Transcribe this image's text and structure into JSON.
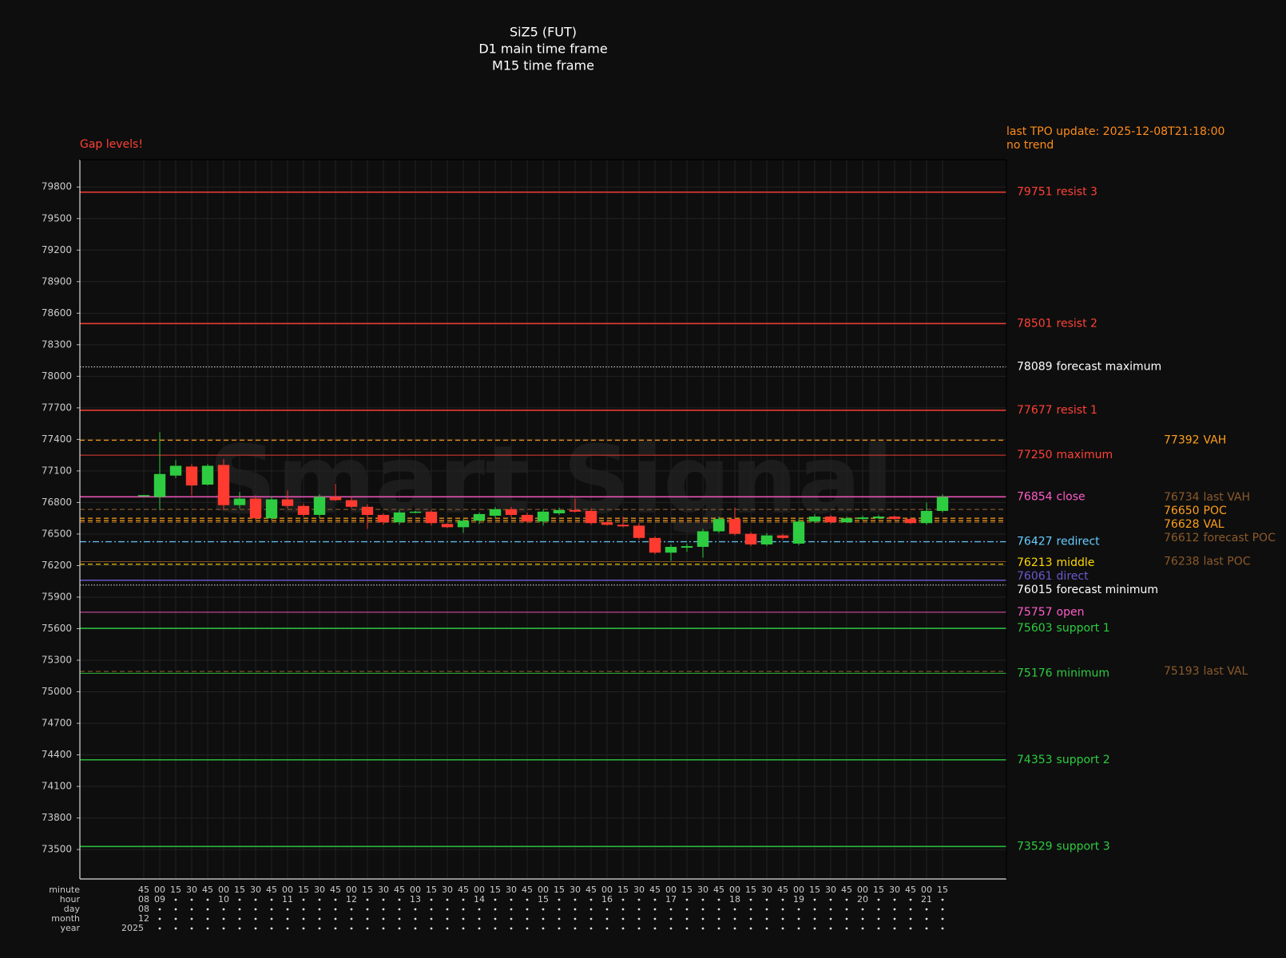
{
  "chart_data": {
    "type": "candlestick",
    "title": [
      "SiZ5 (FUT)",
      "D1 main time frame",
      "M15 time frame"
    ],
    "warning": "Gap levels!",
    "status": [
      "last TPO update: 2025-12-08T21:18:00",
      "no trend"
    ],
    "watermark": "Smart Signal",
    "ylim": [
      73220,
      80060
    ],
    "yticks": [
      73500,
      73800,
      74100,
      74400,
      74700,
      75000,
      75300,
      75600,
      75900,
      76200,
      76500,
      76800,
      77100,
      77400,
      77700,
      78000,
      78300,
      78600,
      78900,
      79200,
      79500,
      79800
    ],
    "grid": true,
    "up_color": "#2ecc40",
    "down_color": "#ff3b30",
    "x_rows": [
      {
        "name": "minute",
        "labels": [
          "45",
          "00",
          "15",
          "30",
          "45",
          "00",
          "15",
          "30",
          "45",
          "00",
          "15",
          "30",
          "45",
          "00",
          "15",
          "30",
          "45",
          "00",
          "15",
          "30",
          "45",
          "00",
          "15",
          "30",
          "45",
          "00",
          "15",
          "30",
          "45",
          "00",
          "15",
          "30",
          "45",
          "00",
          "15",
          "30",
          "45",
          "00",
          "15",
          "30",
          "45",
          "00",
          "15",
          "30",
          "45",
          "00",
          "15",
          "30",
          "45",
          "00",
          "15"
        ]
      },
      {
        "name": "hour",
        "labels": [
          "08",
          "09",
          null,
          null,
          null,
          "10",
          null,
          null,
          null,
          "11",
          null,
          null,
          null,
          "12",
          null,
          null,
          null,
          "13",
          null,
          null,
          null,
          "14",
          null,
          null,
          null,
          "15",
          null,
          null,
          null,
          "16",
          null,
          null,
          null,
          "17",
          null,
          null,
          null,
          "18",
          null,
          null,
          null,
          "19",
          null,
          null,
          null,
          "20",
          null,
          null,
          null,
          "21",
          null
        ]
      },
      {
        "name": "day",
        "labels": [
          "08",
          null,
          null,
          null,
          null,
          null,
          null,
          null,
          null,
          null,
          null,
          null,
          null,
          null,
          null,
          null,
          null,
          null,
          null,
          null,
          null,
          null,
          null,
          null,
          null,
          null,
          null,
          null,
          null,
          null,
          null,
          null,
          null,
          null,
          null,
          null,
          null,
          null,
          null,
          null,
          null,
          null,
          null,
          null,
          null,
          null,
          null,
          null,
          null,
          null,
          null
        ]
      },
      {
        "name": "month",
        "labels": [
          "12",
          null,
          null,
          null,
          null,
          null,
          null,
          null,
          null,
          null,
          null,
          null,
          null,
          null,
          null,
          null,
          null,
          null,
          null,
          null,
          null,
          null,
          null,
          null,
          null,
          null,
          null,
          null,
          null,
          null,
          null,
          null,
          null,
          null,
          null,
          null,
          null,
          null,
          null,
          null,
          null,
          null,
          null,
          null,
          null,
          null,
          null,
          null,
          null,
          null,
          null
        ]
      },
      {
        "name": "year",
        "labels": [
          "2025",
          null,
          null,
          null,
          null,
          null,
          null,
          null,
          null,
          null,
          null,
          null,
          null,
          null,
          null,
          null,
          null,
          null,
          null,
          null,
          null,
          null,
          null,
          null,
          null,
          null,
          null,
          null,
          null,
          null,
          null,
          null,
          null,
          null,
          null,
          null,
          null,
          null,
          null,
          null,
          null,
          null,
          null,
          null,
          null,
          null,
          null,
          null,
          null,
          null,
          null
        ]
      }
    ],
    "ohlc": [
      [
        76865,
        76872,
        76863,
        76870
      ],
      [
        76853,
        77469,
        76728,
        77071
      ],
      [
        77056,
        77204,
        77032,
        77149
      ],
      [
        77142,
        77165,
        76869,
        76962
      ],
      [
        76970,
        77165,
        76962,
        77149
      ],
      [
        77157,
        77212,
        76728,
        76775
      ],
      [
        76775,
        76900,
        76744,
        76837
      ],
      [
        76837,
        76869,
        76635,
        76650
      ],
      [
        76650,
        76861,
        76635,
        76830
      ],
      [
        76830,
        76915,
        76744,
        76767
      ],
      [
        76767,
        76791,
        76666,
        76682
      ],
      [
        76682,
        76877,
        76650,
        76853
      ],
      [
        76853,
        76978,
        76814,
        76822
      ],
      [
        76822,
        76853,
        76744,
        76759
      ],
      [
        76759,
        76783,
        76549,
        76682
      ],
      [
        76682,
        76697,
        76588,
        76612
      ],
      [
        76612,
        76728,
        76588,
        76705
      ],
      [
        76705,
        76720,
        76697,
        76713
      ],
      [
        76713,
        76728,
        76580,
        76604
      ],
      [
        76596,
        76604,
        76557,
        76565
      ],
      [
        76565,
        76643,
        76510,
        76627
      ],
      [
        76627,
        76705,
        76596,
        76690
      ],
      [
        76674,
        76759,
        76650,
        76736
      ],
      [
        76736,
        76759,
        76658,
        76682
      ],
      [
        76682,
        76705,
        76604,
        76619
      ],
      [
        76619,
        76736,
        76580,
        76713
      ],
      [
        76697,
        76752,
        76682,
        76728
      ],
      [
        76728,
        76837,
        76705,
        76713
      ],
      [
        76720,
        76744,
        76588,
        76604
      ],
      [
        76612,
        76627,
        76580,
        76588
      ],
      [
        76588,
        76666,
        76565,
        76573
      ],
      [
        76580,
        76604,
        76448,
        76463
      ],
      [
        76463,
        76479,
        76307,
        76323
      ],
      [
        76323,
        76401,
        76245,
        76378
      ],
      [
        76370,
        76409,
        76331,
        76385
      ],
      [
        76378,
        76549,
        76276,
        76526
      ],
      [
        76526,
        76666,
        76510,
        76643
      ],
      [
        76643,
        76752,
        76487,
        76502
      ],
      [
        76502,
        76518,
        76385,
        76401
      ],
      [
        76401,
        76510,
        76385,
        76487
      ],
      [
        76487,
        76502,
        76448,
        76463
      ],
      [
        76409,
        76643,
        76393,
        76619
      ],
      [
        76619,
        76690,
        76604,
        76666
      ],
      [
        76666,
        76682,
        76596,
        76612
      ],
      [
        76612,
        76666,
        76604,
        76650
      ],
      [
        76643,
        76674,
        76635,
        76658
      ],
      [
        76650,
        76682,
        76643,
        76666
      ],
      [
        76666,
        76674,
        76635,
        76643
      ],
      [
        76643,
        76658,
        76596,
        76604
      ],
      [
        76604,
        76798,
        76588,
        76720
      ],
      [
        76720,
        76877,
        76705,
        76853
      ]
    ],
    "levels": [
      {
        "value": 79751,
        "name": "resist 3",
        "color": "#ff4136",
        "style": "solid"
      },
      {
        "value": 78501,
        "name": "resist 2",
        "color": "#ff4136",
        "style": "solid"
      },
      {
        "value": 78089,
        "name": "forecast maximum",
        "color": "#ffffff",
        "style": "dotted"
      },
      {
        "value": 77677,
        "name": "resist 1",
        "color": "#ff4136",
        "style": "solid"
      },
      {
        "value": 77250,
        "name": "maximum",
        "color": "#ff4136",
        "style": "thin"
      },
      {
        "value": 76854,
        "name": "close",
        "color": "#ff5cc8",
        "style": "solid"
      },
      {
        "value": 76427,
        "name": "redirect",
        "color": "#66ccff",
        "style": "dashdot"
      },
      {
        "value": 76213,
        "name": "middle",
        "color": "#ffd700",
        "style": "dashed"
      },
      {
        "value": 76061,
        "name": "direct",
        "color": "#6a5acd",
        "style": "solid"
      },
      {
        "value": 76015,
        "name": "forecast minimum",
        "color": "#ffffff",
        "style": "dotted"
      },
      {
        "value": 75757,
        "name": "open",
        "color": "#ff5cc8",
        "style": "thin"
      },
      {
        "value": 75603,
        "name": "support 1",
        "color": "#2ecc40",
        "style": "solid"
      },
      {
        "value": 75176,
        "name": "minimum",
        "color": "#2ecc40",
        "style": "thin"
      },
      {
        "value": 74353,
        "name": "support 2",
        "color": "#2ecc40",
        "style": "solid"
      },
      {
        "value": 73529,
        "name": "support 3",
        "color": "#2ecc40",
        "style": "solid"
      }
    ],
    "profile_levels": [
      {
        "value": 77392,
        "name": "VAH",
        "color": "#ff9f1a",
        "style": "dashed"
      },
      {
        "value": 76734,
        "name": "last VAH",
        "color": "#8b5a2b",
        "style": "dashed"
      },
      {
        "value": 76650,
        "name": "POC",
        "color": "#ff9f1a",
        "style": "dashed"
      },
      {
        "value": 76628,
        "name": "VAL",
        "color": "#ff9f1a",
        "style": "dashed"
      },
      {
        "value": 76612,
        "name": "forecast POC",
        "color": "#8b5a2b",
        "style": "dashed"
      },
      {
        "value": 76238,
        "name": "last POC",
        "color": "#8b5a2b",
        "style": "thin"
      },
      {
        "value": 75193,
        "name": "last VAL",
        "color": "#8b5a2b",
        "style": "dashed"
      }
    ]
  }
}
